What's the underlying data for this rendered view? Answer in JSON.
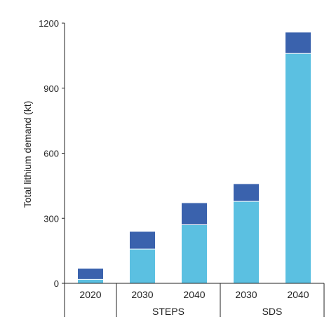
{
  "chart_data": {
    "type": "bar",
    "stacked": true,
    "title": "",
    "xlabel": "",
    "ylabel": "Total lithium demand (kt)",
    "ylim": [
      0,
      1200
    ],
    "yticks": [
      "0",
      "300",
      "600",
      "900",
      "1200"
    ],
    "grid": false,
    "legend": "none",
    "categories": [
      "2020",
      "2030",
      "2040",
      "2030",
      "2040"
    ],
    "groups": [
      {
        "label": "",
        "categories": [
          "2020"
        ]
      },
      {
        "label": "STEPS",
        "categories": [
          "2030",
          "2040"
        ]
      },
      {
        "label": "SDS",
        "categories": [
          "2030",
          "2040"
        ]
      }
    ],
    "series": [
      {
        "color": "#5bc0e1",
        "values": [
          18,
          158,
          270,
          378,
          1060
        ]
      },
      {
        "color": "#3a62ad",
        "values": [
          50,
          80,
          100,
          80,
          97
        ]
      }
    ]
  }
}
